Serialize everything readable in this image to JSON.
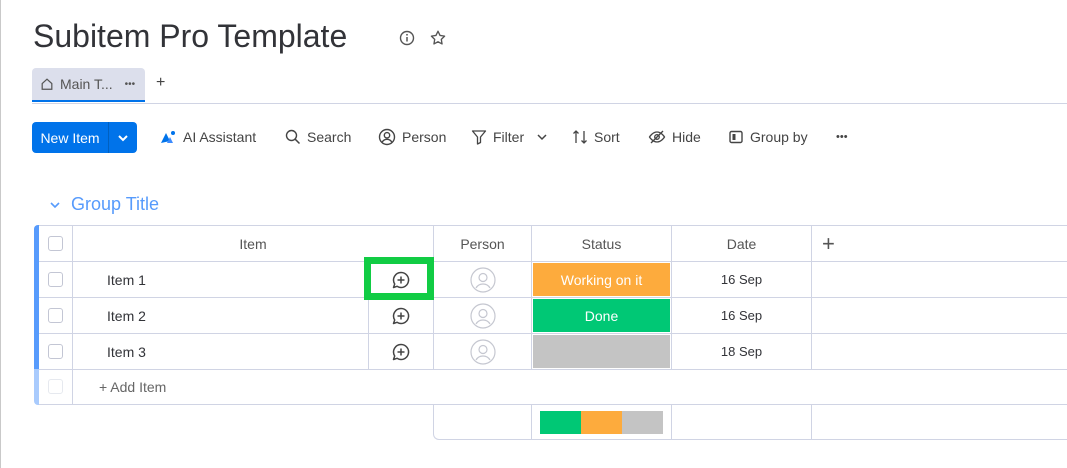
{
  "board": {
    "title": "Subitem Pro Template"
  },
  "tabs": [
    {
      "label": "Main T...",
      "more": "•••"
    }
  ],
  "add_tab": "+",
  "toolbar": {
    "new_item": "New Item",
    "ai": "AI Assistant",
    "search": "Search",
    "person": "Person",
    "filter": "Filter",
    "sort": "Sort",
    "hide": "Hide",
    "group_by": "Group by",
    "more": "•••"
  },
  "group": {
    "title": "Group Title",
    "color": "#579bfc"
  },
  "columns": {
    "item": "Item",
    "person": "Person",
    "status": "Status",
    "date": "Date",
    "add": "+"
  },
  "rows": [
    {
      "name": "Item 1",
      "status": "Working on it",
      "status_color": "#fdab3d",
      "date": "16 Sep"
    },
    {
      "name": "Item 2",
      "status": "Done",
      "status_color": "#00c875",
      "date": "16 Sep"
    },
    {
      "name": "Item 3",
      "status": "",
      "status_color": "#c4c4c4",
      "date": "18 Sep"
    }
  ],
  "add_item": "+ Add Item",
  "status_summary": [
    {
      "color": "#00c875",
      "fraction": 0.333
    },
    {
      "color": "#fdab3d",
      "fraction": 0.333
    },
    {
      "color": "#c4c4c4",
      "fraction": 0.334
    }
  ]
}
